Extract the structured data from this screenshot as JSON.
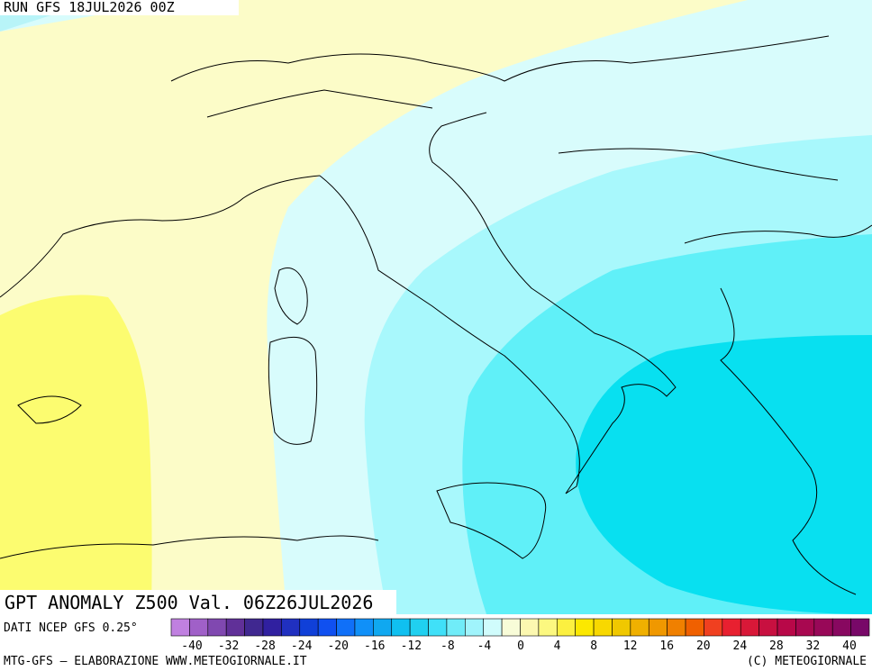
{
  "header": {
    "run": "RUN GFS 18JUL2026 00Z"
  },
  "map": {
    "title": "GPT ANOMALY Z500 Val. 06Z26JUL2026",
    "source": "DATI NCEP GFS 0.25°"
  },
  "colorbar": {
    "colors": [
      "#c080e0",
      "#a060c8",
      "#8048b0",
      "#603098",
      "#402890",
      "#3020a0",
      "#2030c0",
      "#1040d8",
      "#1050f0",
      "#1070f8",
      "#1090f8",
      "#10a8f0",
      "#10c0f0",
      "#20d0f0",
      "#40e0f8",
      "#70ecf8",
      "#a0f4fc",
      "#d0fcfc",
      "#f8fcd8",
      "#fcf8b0",
      "#fcf880",
      "#fcf040",
      "#fce800",
      "#f8d800",
      "#f0c800",
      "#f0b000",
      "#f09800",
      "#f08000",
      "#f06000",
      "#f04020",
      "#e82030",
      "#d81838",
      "#c81040",
      "#b80848",
      "#a80850",
      "#980858",
      "#880860",
      "#780868"
    ],
    "labels": [
      "-40",
      "-32",
      "-28",
      "-24",
      "-20",
      "-16",
      "-12",
      "-8",
      "-4",
      "0",
      "4",
      "8",
      "12",
      "16",
      "20",
      "24",
      "28",
      "32",
      "40"
    ]
  },
  "footer": {
    "left": "MTG-GFS — ELABORAZIONE WWW.METEOGIORNALE.IT",
    "right": "(C) METEOGIORNALE"
  }
}
